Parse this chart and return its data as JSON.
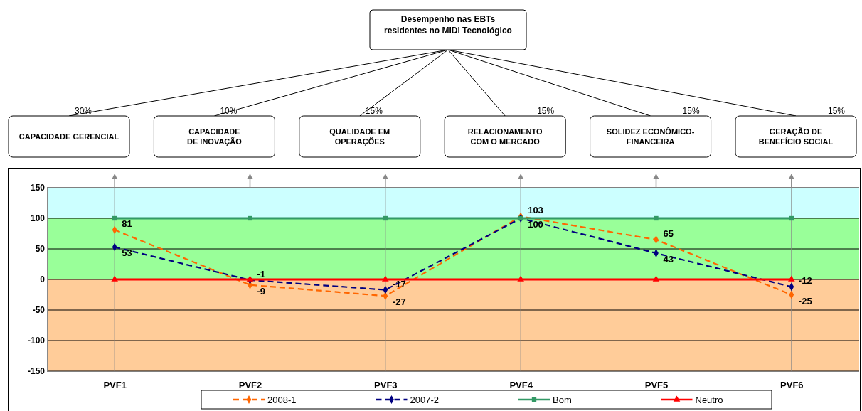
{
  "chart_data": {
    "type": "line",
    "title": "Desempenho nas EBTs\nresidentes no MIDI Tecnológico",
    "categories": [
      "PVF1",
      "PVF2",
      "PVF3",
      "PVF4",
      "PVF5",
      "PVF6"
    ],
    "series": [
      {
        "name": "2008-1",
        "color": "#ff6600",
        "values": [
          81,
          -9,
          -27,
          103,
          65,
          -25
        ],
        "value_labels": [
          "81",
          "-9",
          "-27",
          "103",
          "65",
          "-25"
        ],
        "marker": "diamond",
        "line_style": "dashed"
      },
      {
        "name": "2007-2",
        "color": "#000080",
        "values": [
          53,
          -1,
          -17,
          100,
          43,
          -12
        ],
        "value_labels": [
          "53",
          "-1",
          "-17",
          "100",
          "43",
          "-12"
        ],
        "marker": "diamond",
        "line_style": "dashed"
      },
      {
        "name": "Bom",
        "color": "#339966",
        "values": [
          100,
          100,
          100,
          100,
          100,
          100
        ],
        "marker": "square",
        "line_style": "solid"
      },
      {
        "name": "Neutro",
        "color": "#ff0000",
        "values": [
          0,
          0,
          0,
          0,
          0,
          0
        ],
        "marker": "triangle",
        "line_style": "solid"
      }
    ],
    "ylim": [
      -150,
      150
    ],
    "yticks": [
      150,
      100,
      50,
      0,
      -50,
      -100,
      -150
    ],
    "grid": true,
    "legend": "bottom",
    "bands": [
      {
        "axis": "y",
        "from": 100,
        "to": 150,
        "color": "#ccffff"
      },
      {
        "axis": "y",
        "from": 0,
        "to": 100,
        "color": "#99ff99"
      },
      {
        "axis": "y",
        "from": -150,
        "to": 0,
        "color": "#ffcc99"
      }
    ],
    "annotations": [
      "CAPACIDADE GERENCIAL",
      "CAPACIDADE\nDE INOVAÇÃO",
      "QUALIDADE EM\nOPERAÇÕES",
      "RELACIONAMENTO\nCOM O MERCADO",
      "SOLIDEZ ECONÔMICO-\nFINANCEIRA",
      "GERAÇÃO DE\nBENEFÍCIO SOCIAL",
      "30%",
      "10%",
      "15%",
      "15%",
      "15%",
      "15%"
    ]
  }
}
